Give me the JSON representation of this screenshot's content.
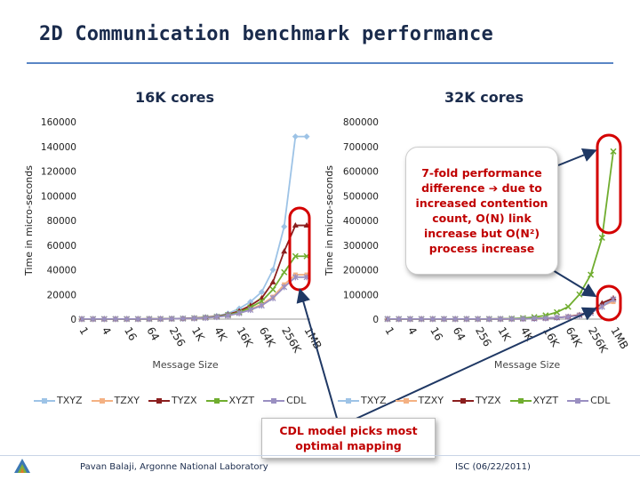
{
  "slide": {
    "title": "2D Communication benchmark performance",
    "left_label": "16K cores",
    "right_label": "32K cores",
    "callout": "7-fold performance difference ➔ due to increased contention count, O(N) link increase but O(N²) process increase",
    "callout2": "CDL model picks most optimal mapping",
    "footer_left": "Pavan Balaji, Argonne National Laboratory",
    "footer_right": "ISC (06/22/2011)"
  },
  "colors": {
    "TXYZ": "#9dc3e6",
    "TZXY": "#f4b183",
    "TYZX": "#8b1e1e",
    "XYZT": "#70ad2f",
    "CDL": "#9a8fc1",
    "highlight": "#d40000",
    "arrow": "#1f3864"
  },
  "chart_data": [
    {
      "type": "line",
      "title": "16K cores",
      "xlabel": "Message Size",
      "ylabel": "Time in micro-seconds",
      "ylim": [
        0,
        160000
      ],
      "yticks": [
        "0",
        "20000",
        "40000",
        "60000",
        "80000",
        "100000",
        "120000",
        "140000",
        "160000"
      ],
      "categories": [
        "1",
        "2",
        "4",
        "8",
        "16",
        "32",
        "64",
        "128",
        "256",
        "512",
        "1K",
        "2K",
        "4K",
        "8K",
        "16K",
        "32K",
        "64K",
        "128K",
        "256K",
        "512K",
        "1MB"
      ],
      "xtick_labels": [
        "1",
        "",
        "4",
        "",
        "16",
        "",
        "64",
        "",
        "256",
        "",
        "1K",
        "",
        "4K",
        "",
        "16K",
        "",
        "64K",
        "",
        "256K",
        "",
        "1MB"
      ],
      "grid": false,
      "legend": "bottom",
      "series": [
        {
          "name": "TXYZ",
          "values": [
            100,
            100,
            100,
            100,
            100,
            100,
            150,
            200,
            300,
            500,
            800,
            1500,
            2500,
            4500,
            8500,
            14000,
            22000,
            40000,
            75000,
            148000,
            148000
          ]
        },
        {
          "name": "TZXY",
          "values": [
            100,
            100,
            100,
            100,
            100,
            100,
            150,
            200,
            300,
            400,
            600,
            1000,
            1800,
            3000,
            5000,
            8000,
            12000,
            18000,
            28000,
            36000,
            36000
          ]
        },
        {
          "name": "TYZX",
          "values": [
            100,
            100,
            100,
            100,
            100,
            100,
            150,
            200,
            300,
            500,
            800,
            1400,
            2200,
            3800,
            6500,
            11000,
            17000,
            30000,
            55000,
            76000,
            76000
          ]
        },
        {
          "name": "XYZT",
          "values": [
            100,
            100,
            100,
            100,
            100,
            100,
            150,
            200,
            300,
            450,
            700,
            1200,
            2000,
            3300,
            5500,
            9500,
            14500,
            24000,
            38000,
            51000,
            51000
          ]
        },
        {
          "name": "CDL",
          "values": [
            100,
            100,
            100,
            100,
            100,
            100,
            150,
            200,
            300,
            400,
            600,
            1000,
            1700,
            2800,
            4800,
            7500,
            11000,
            17000,
            26000,
            34000,
            34000
          ]
        }
      ]
    },
    {
      "type": "line",
      "title": "32K cores",
      "xlabel": "Message Size",
      "ylabel": "Time in micro-seconds",
      "ylim": [
        0,
        800000
      ],
      "yticks": [
        "0",
        "100000",
        "200000",
        "300000",
        "400000",
        "500000",
        "600000",
        "700000",
        "800000"
      ],
      "categories": [
        "1",
        "2",
        "4",
        "8",
        "16",
        "32",
        "64",
        "128",
        "256",
        "512",
        "1K",
        "2K",
        "4K",
        "8K",
        "16K",
        "32K",
        "64K",
        "128K",
        "256K",
        "512K",
        "1MB"
      ],
      "xtick_labels": [
        "1",
        "",
        "4",
        "",
        "16",
        "",
        "64",
        "",
        "256",
        "",
        "1K",
        "",
        "4K",
        "",
        "16K",
        "",
        "64K",
        "",
        "256K",
        "",
        "1MB"
      ],
      "grid": false,
      "legend": "bottom",
      "series": [
        {
          "name": "TXYZ",
          "values": [
            500,
            500,
            500,
            500,
            500,
            500,
            500,
            500,
            500,
            500,
            600,
            800,
            1200,
            2000,
            3500,
            6000,
            10000,
            17000,
            30000,
            60000,
            80000
          ]
        },
        {
          "name": "TZXY",
          "values": [
            500,
            500,
            500,
            500,
            500,
            500,
            500,
            500,
            500,
            500,
            600,
            800,
            1200,
            2000,
            3500,
            6000,
            10000,
            17000,
            28000,
            55000,
            70000
          ]
        },
        {
          "name": "TYZX",
          "values": [
            500,
            500,
            500,
            500,
            500,
            500,
            500,
            500,
            500,
            500,
            600,
            800,
            1200,
            2000,
            3500,
            6000,
            10000,
            17000,
            30000,
            65000,
            85000
          ]
        },
        {
          "name": "XYZT",
          "values": [
            500,
            500,
            500,
            500,
            500,
            500,
            500,
            500,
            500,
            600,
            1000,
            2000,
            4000,
            8000,
            15000,
            28000,
            50000,
            100000,
            180000,
            330000,
            680000
          ]
        },
        {
          "name": "CDL",
          "values": [
            500,
            500,
            500,
            500,
            500,
            500,
            500,
            500,
            500,
            500,
            600,
            800,
            1200,
            2000,
            3500,
            6000,
            9000,
            15000,
            25000,
            50000,
            80000
          ]
        }
      ]
    }
  ]
}
